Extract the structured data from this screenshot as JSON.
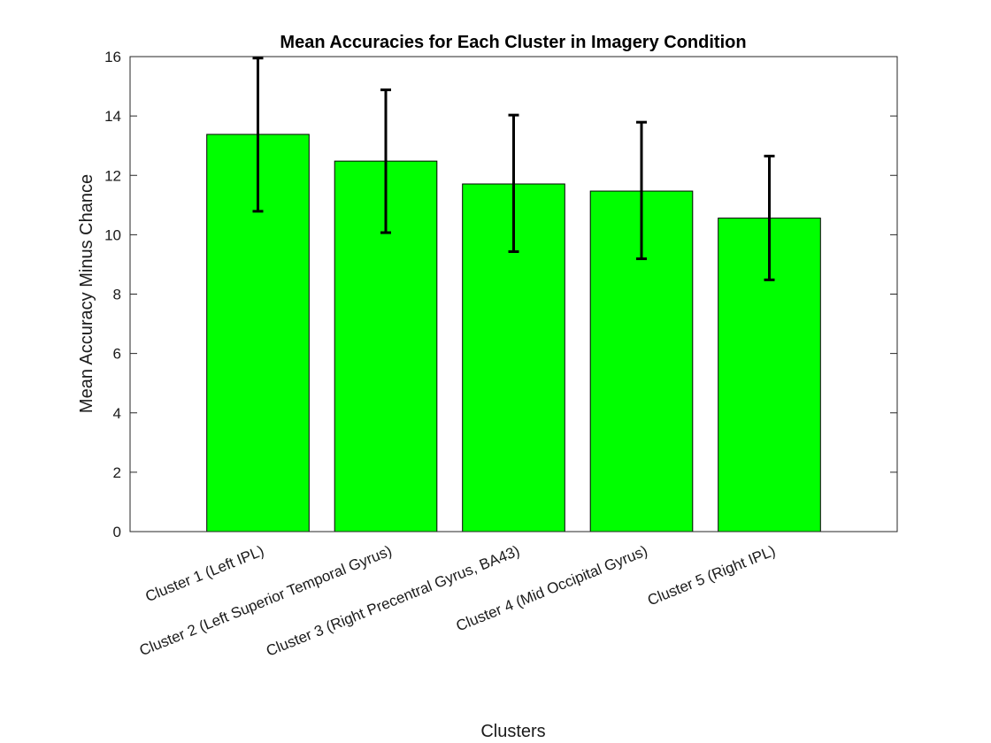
{
  "chart_data": {
    "type": "bar",
    "title": "Mean Accuracies for Each Cluster in Imagery Condition",
    "xlabel": "Clusters",
    "ylabel": "Mean Accuracy Minus Chance",
    "ylim": [
      0,
      16
    ],
    "yticks": [
      0,
      2,
      4,
      6,
      8,
      10,
      12,
      14,
      16
    ],
    "xlim": [
      0,
      6
    ],
    "categories": [
      "Cluster 1 (Left IPL)",
      "Cluster 2 (Left Superior Temporal Gyrus)",
      "Cluster 3 (Right Precentral Gyrus, BA43)",
      "Cluster 4 (Mid Occipital Gyrus)",
      "Cluster 5 (Right IPL)"
    ],
    "values": [
      13.38,
      12.48,
      11.71,
      11.47,
      10.56
    ],
    "error_upper": [
      15.95,
      14.88,
      14.03,
      13.79,
      12.65
    ],
    "error_lower": [
      10.79,
      10.07,
      9.43,
      9.19,
      8.48
    ],
    "bar_color": "#00ff00",
    "grid": false,
    "legend": "none"
  }
}
